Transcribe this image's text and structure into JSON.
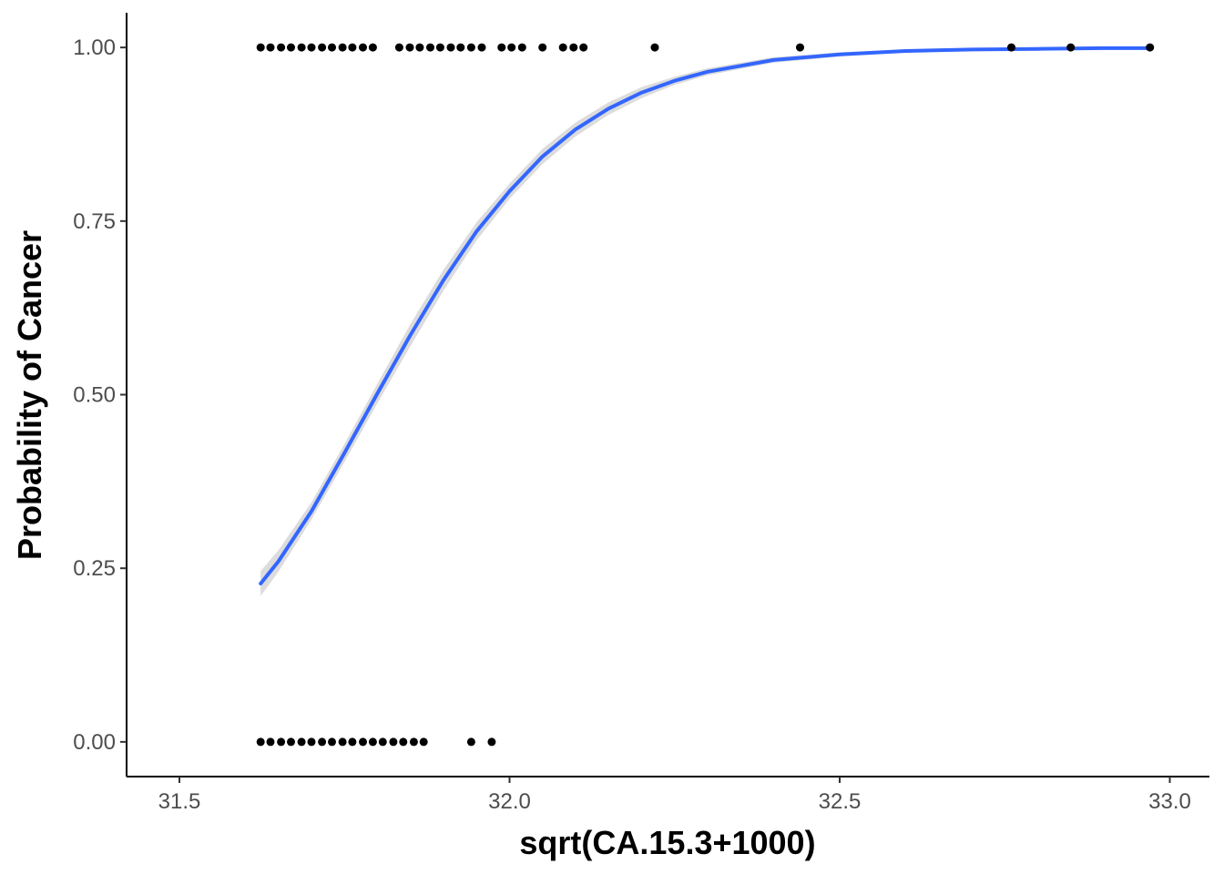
{
  "chart_data": {
    "type": "scatter",
    "title": "",
    "xlabel": "sqrt(CA.15.3+1000)",
    "ylabel": "Probability of Cancer",
    "xlim": [
      31.42,
      33.06
    ],
    "ylim": [
      -0.05,
      1.05
    ],
    "x_ticks": [
      31.5,
      32.0,
      32.5,
      33.0
    ],
    "x_tick_labels": [
      "31.5",
      "32.0",
      "32.5",
      "33.0"
    ],
    "y_ticks": [
      0,
      0.25,
      0.5,
      0.75,
      1.0
    ],
    "y_tick_labels": [
      "0.00",
      "0.25",
      "0.50",
      "0.75",
      "1.00"
    ],
    "grid": false,
    "legend": "none",
    "colors": {
      "points": "#000000",
      "curve": "#3366FF",
      "band": "#d3d3d3",
      "axis": "#000000"
    },
    "series": [
      {
        "kind": "points",
        "x": [
          31.623,
          31.638,
          31.654,
          31.669,
          31.685,
          31.7,
          31.716,
          31.731,
          31.747,
          31.762,
          31.778,
          31.793,
          31.833,
          31.849,
          31.864,
          31.88,
          31.895,
          31.911,
          31.926,
          31.942,
          31.958,
          31.988,
          32.003,
          32.019,
          32.05,
          32.081,
          32.097,
          32.112,
          32.22,
          32.44,
          32.76,
          32.85,
          32.97,
          31.623,
          31.638,
          31.654,
          31.669,
          31.685,
          31.7,
          31.716,
          31.731,
          31.747,
          31.762,
          31.778,
          31.793,
          31.808,
          31.824,
          31.839,
          31.855,
          31.87,
          31.942,
          31.973
        ],
        "y": [
          1,
          1,
          1,
          1,
          1,
          1,
          1,
          1,
          1,
          1,
          1,
          1,
          1,
          1,
          1,
          1,
          1,
          1,
          1,
          1,
          1,
          1,
          1,
          1,
          1,
          1,
          1,
          1,
          1,
          1,
          1,
          1,
          1,
          0,
          0,
          0,
          0,
          0,
          0,
          0,
          0,
          0,
          0,
          0,
          0,
          0,
          0,
          0,
          0,
          0,
          0,
          0
        ]
      },
      {
        "kind": "fit",
        "model": "logistic",
        "x": [
          31.623,
          31.65,
          31.7,
          31.75,
          31.8,
          31.85,
          31.9,
          31.95,
          32.0,
          32.05,
          32.1,
          32.15,
          32.2,
          32.25,
          32.3,
          32.4,
          32.5,
          32.6,
          32.7,
          32.8,
          32.9,
          32.97
        ],
        "y": [
          0.228,
          0.26,
          0.332,
          0.416,
          0.502,
          0.586,
          0.665,
          0.735,
          0.793,
          0.843,
          0.882,
          0.912,
          0.935,
          0.952,
          0.965,
          0.982,
          0.99,
          0.995,
          0.997,
          0.998,
          0.999,
          0.999
        ],
        "ci_lower": [
          0.21,
          0.245,
          0.32,
          0.403,
          0.488,
          0.57,
          0.65,
          0.722,
          0.782,
          0.832,
          0.872,
          0.903,
          0.927,
          0.946,
          0.96,
          0.978,
          0.987,
          0.993,
          0.996,
          0.997,
          0.998,
          0.998
        ],
        "ci_upper": [
          0.246,
          0.276,
          0.345,
          0.429,
          0.516,
          0.602,
          0.68,
          0.748,
          0.804,
          0.854,
          0.892,
          0.921,
          0.943,
          0.958,
          0.97,
          0.986,
          0.993,
          0.997,
          0.999,
          1.0,
          1.0,
          1.0
        ]
      }
    ]
  }
}
